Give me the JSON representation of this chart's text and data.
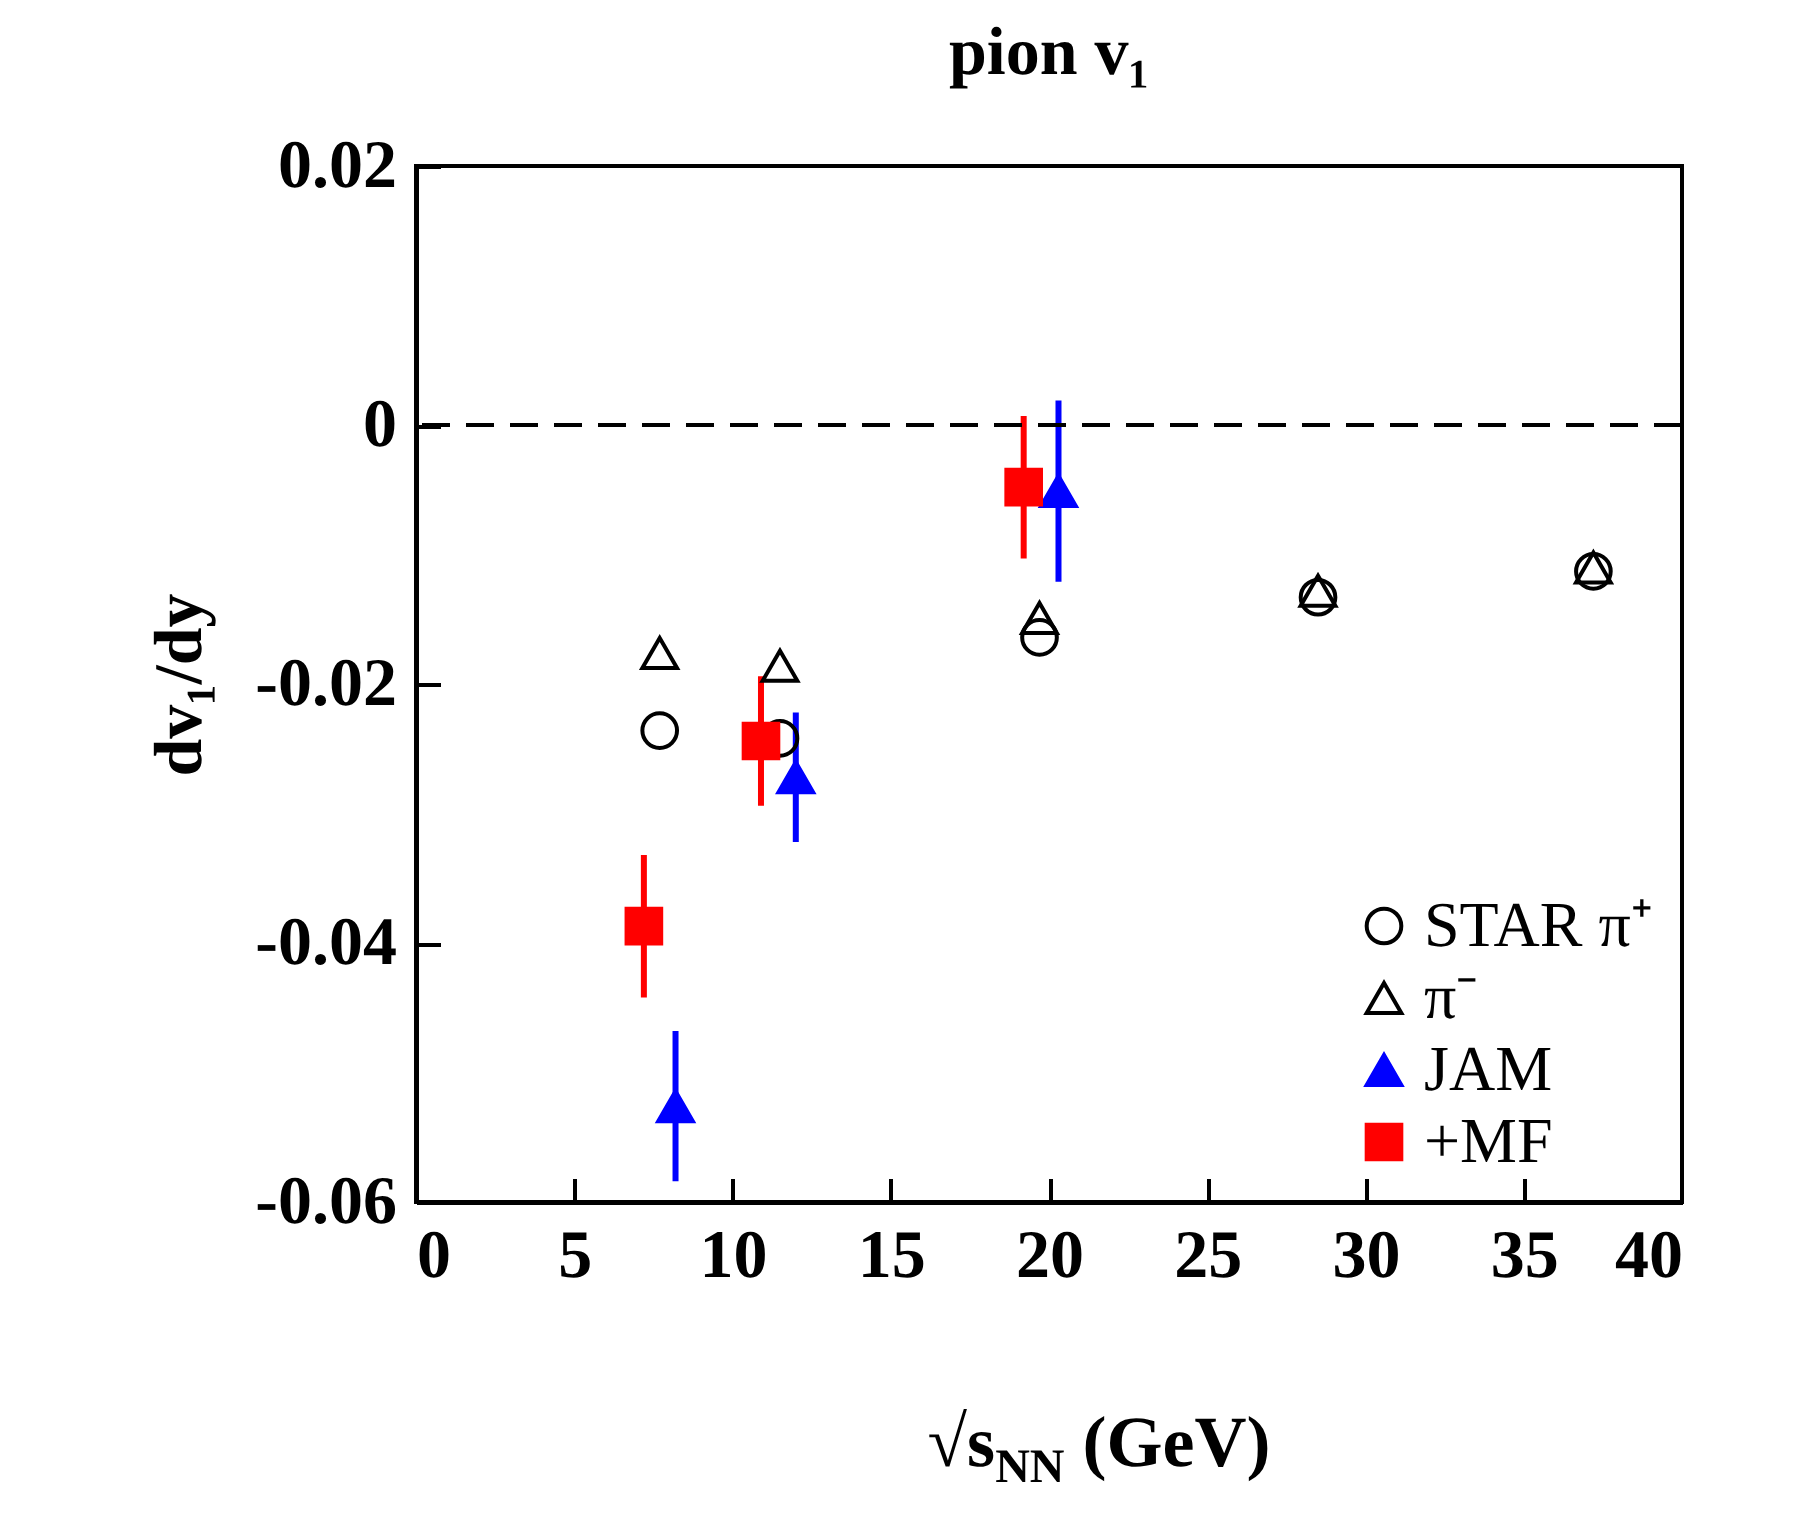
{
  "chart_data": {
    "type": "scatter",
    "title": "pion v₁",
    "xlabel": "√s$_{NN}$ (GeV)",
    "ylabel": "dv₁/dy",
    "xlim": [
      0,
      40
    ],
    "xticks": [
      0,
      5,
      10,
      15,
      20,
      25,
      30,
      35,
      40
    ],
    "ylim": [
      -0.06,
      0.02
    ],
    "yticks": [
      -0.06,
      -0.04,
      -0.02,
      0,
      0.02
    ],
    "legend": "bottom right",
    "grid": false,
    "ref_lines": [
      {
        "axis": "y",
        "value": 0,
        "color": "#000000",
        "line_style": "dashed"
      }
    ],
    "series": [
      {
        "name": "STAR π⁺",
        "color": "#000000",
        "marker": "circle",
        "x": [
          7.7,
          11.5,
          19.7,
          28.5,
          37.2
        ],
        "values": [
          -0.0236,
          -0.0242,
          -0.0164,
          -0.0133,
          -0.0113
        ]
      },
      {
        "name": "π⁻",
        "color": "#000000",
        "marker": "triangle",
        "x": [
          7.7,
          11.5,
          19.7,
          28.5,
          37.2
        ],
        "values": [
          -0.0176,
          -0.0186,
          -0.0149,
          -0.0128,
          -0.011
        ]
      },
      {
        "name": "JAM",
        "color": "#0000ff",
        "marker": "triangle",
        "x": [
          8.2,
          12.0,
          20.3
        ],
        "values": [
          -0.0526,
          -0.0272,
          -0.0051
        ],
        "errors": [
          0.0058,
          0.005,
          0.007
        ]
      },
      {
        "name": "+MF",
        "color": "#ff0000",
        "marker": "square",
        "x": [
          7.2,
          10.9,
          19.2
        ],
        "values": [
          -0.0387,
          -0.0244,
          -0.0048
        ],
        "errors": [
          0.0055,
          0.005,
          0.0055
        ]
      }
    ]
  }
}
